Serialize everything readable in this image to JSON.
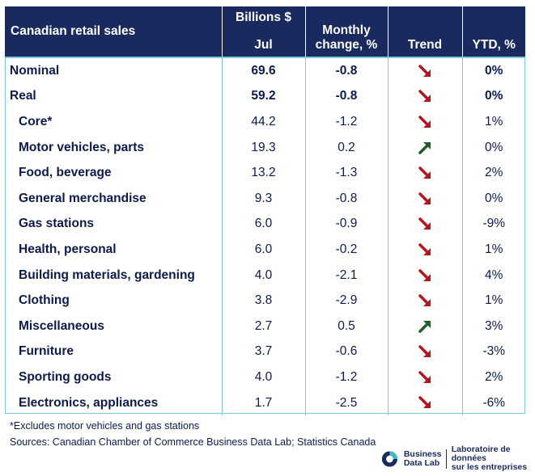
{
  "chart_data": {
    "type": "table",
    "columns": {
      "category": "Canadian retail sales",
      "billions_top": "Billions $",
      "billions_bottom": "Jul",
      "monthly_top": "Monthly",
      "monthly_bottom": "change, %",
      "trend": "Trend",
      "ytd": "YTD, %"
    },
    "rows": [
      {
        "name": "Nominal",
        "value": "69.6",
        "change": "-0.8",
        "trend": "down",
        "ytd": "0%",
        "main": true
      },
      {
        "name": "Real",
        "value": "59.2",
        "change": "-0.8",
        "trend": "down",
        "ytd": "0%",
        "main": true
      },
      {
        "name": "Core*",
        "value": "44.2",
        "change": "-1.2",
        "trend": "down",
        "ytd": "1%",
        "main": false
      },
      {
        "name": "Motor vehicles, parts",
        "value": "19.3",
        "change": "0.2",
        "trend": "up",
        "ytd": "0%",
        "main": false
      },
      {
        "name": "Food, beverage",
        "value": "13.2",
        "change": "-1.3",
        "trend": "down",
        "ytd": "2%",
        "main": false
      },
      {
        "name": "General merchandise",
        "value": "9.3",
        "change": "-0.8",
        "trend": "down",
        "ytd": "0%",
        "main": false
      },
      {
        "name": "Gas stations",
        "value": "6.0",
        "change": "-0.9",
        "trend": "down",
        "ytd": "-9%",
        "main": false
      },
      {
        "name": "Health, personal",
        "value": "6.0",
        "change": "-0.2",
        "trend": "down",
        "ytd": "1%",
        "main": false
      },
      {
        "name": "Building materials, gardening",
        "value": "4.0",
        "change": "-2.1",
        "trend": "down",
        "ytd": "4%",
        "main": false
      },
      {
        "name": "Clothing",
        "value": "3.8",
        "change": "-2.9",
        "trend": "down",
        "ytd": "1%",
        "main": false
      },
      {
        "name": "Miscellaneous",
        "value": "2.7",
        "change": "0.5",
        "trend": "up",
        "ytd": "3%",
        "main": false
      },
      {
        "name": "Furniture",
        "value": "3.7",
        "change": "-0.6",
        "trend": "down",
        "ytd": "-3%",
        "main": false
      },
      {
        "name": "Sporting goods",
        "value": "4.0",
        "change": "-1.2",
        "trend": "down",
        "ytd": "2%",
        "main": false
      },
      {
        "name": "Electronics, appliances",
        "value": "1.7",
        "change": "-2.5",
        "trend": "down",
        "ytd": "-6%",
        "main": false
      }
    ],
    "colors": {
      "header_bg": "#1b2a5e",
      "grid": "#7fc8d9",
      "down": "#b3161e",
      "up": "#1e5c2a"
    }
  },
  "footnote": "*Excludes motor vehicles and gas stations",
  "sources": "Sources: Canadian Chamber of Commerce Business Data Lab; Statistics Canada",
  "logo": {
    "icon": "business-data-lab-logo-icon",
    "en_line1": "Business",
    "en_line2": "Data Lab",
    "fr_line1": "Laboratoire de données",
    "fr_line2": "sur les entreprises"
  }
}
